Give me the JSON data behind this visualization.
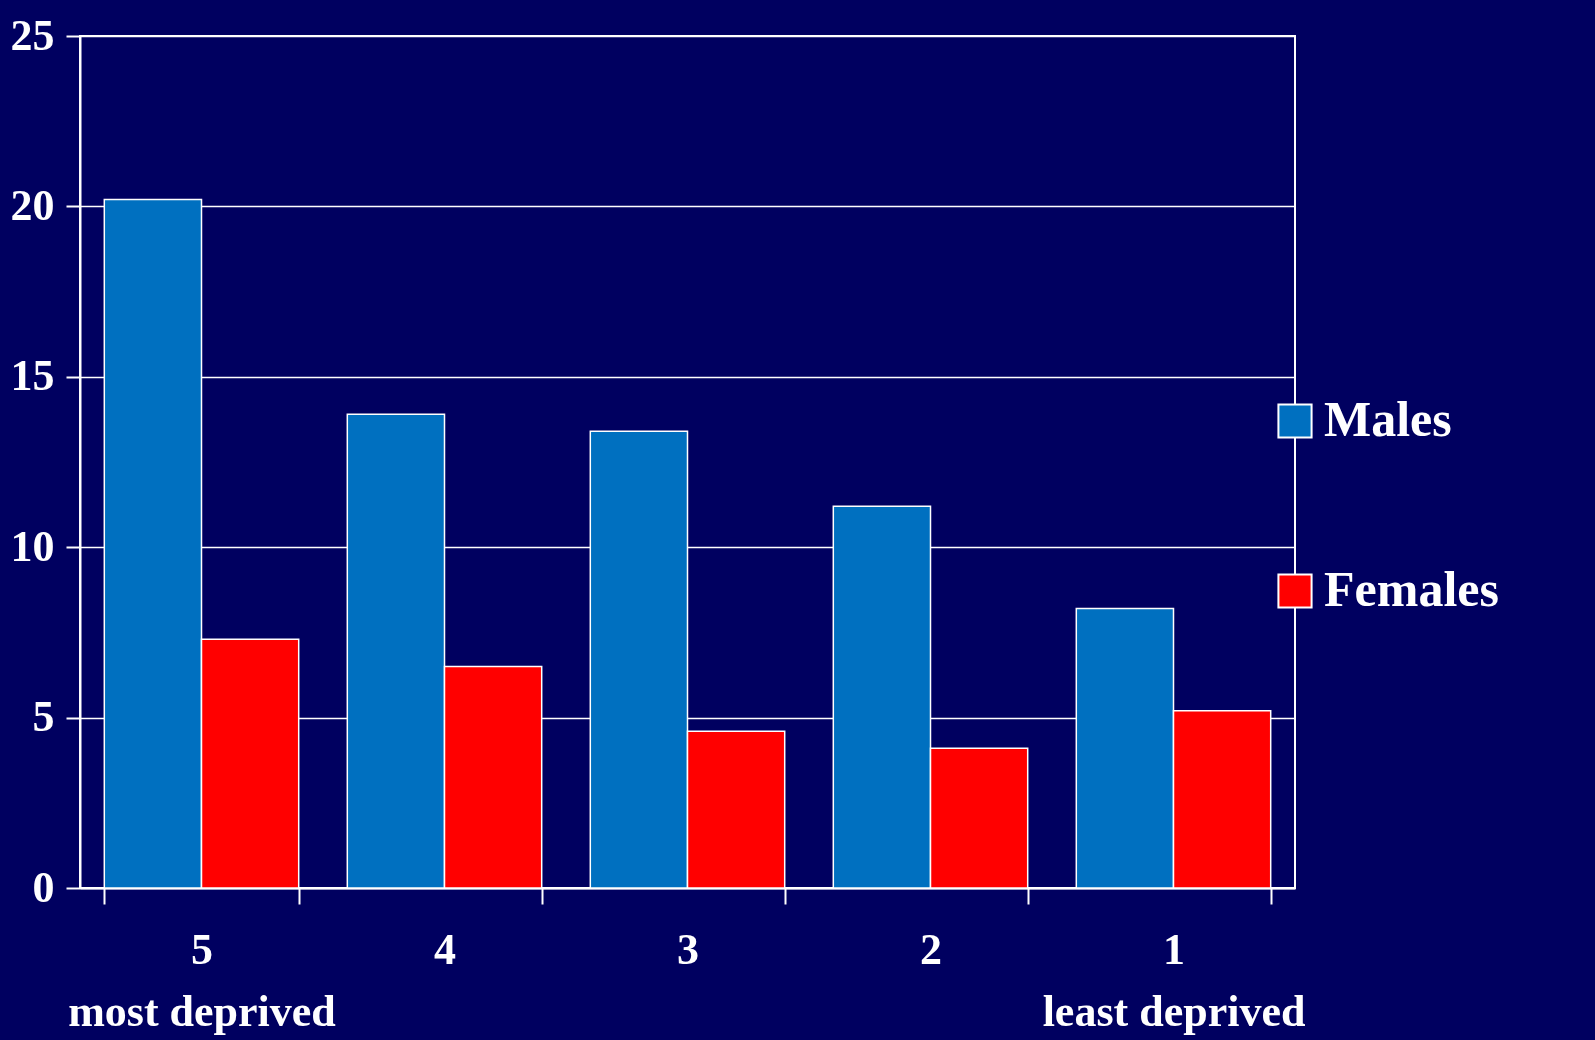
{
  "chart_data": {
    "type": "bar",
    "categories": [
      "5\nmost deprived",
      "4",
      "3",
      "2",
      "1\nleast deprived"
    ],
    "series": [
      {
        "name": "Males",
        "color": "#0070c0",
        "values": [
          20.2,
          13.9,
          13.4,
          11.2,
          8.2
        ]
      },
      {
        "name": "Females",
        "color": "#ff0000",
        "values": [
          7.3,
          6.5,
          4.6,
          4.1,
          5.2
        ]
      }
    ],
    "ylim": [
      0,
      25
    ],
    "yticks": [
      0,
      5,
      10,
      15,
      20,
      25
    ],
    "grid": "y",
    "legend": "right"
  }
}
